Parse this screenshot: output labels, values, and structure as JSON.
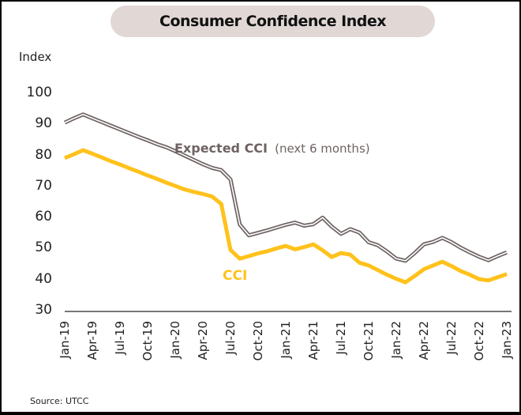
{
  "chart_data": {
    "type": "line",
    "title": "Consumer Confidence Index",
    "ylabel": "Index",
    "xlabel": "",
    "ylim": [
      30,
      100
    ],
    "yticks": [
      100,
      90,
      80,
      70,
      60,
      50,
      40,
      30
    ],
    "grid": false,
    "source": "Source:  UTCC",
    "x": [
      "Jan-19",
      "Feb-19",
      "Mar-19",
      "Apr-19",
      "May-19",
      "Jun-19",
      "Jul-19",
      "Aug-19",
      "Sep-19",
      "Oct-19",
      "Nov-19",
      "Dec-19",
      "Jan-20",
      "Feb-20",
      "Mar-20",
      "Apr-20",
      "May-20",
      "Jun-20",
      "Jul-20",
      "Aug-20",
      "Sep-20",
      "Oct-20",
      "Nov-20",
      "Dec-20",
      "Jan-21",
      "Feb-21",
      "Mar-21",
      "Apr-21",
      "May-21",
      "Jun-21",
      "Jul-21",
      "Aug-21",
      "Sep-21",
      "Oct-21",
      "Nov-21",
      "Dec-21",
      "Jan-22",
      "Feb-22",
      "Mar-22",
      "Apr-22",
      "May-22",
      "Jun-22",
      "Jul-22",
      "Aug-22",
      "Sep-22",
      "Oct-22",
      "Nov-22",
      "Dec-22",
      "Jan-23"
    ],
    "xtick_labels": [
      "Jan-19",
      "Apr-19",
      "Jul-19",
      "Oct-19",
      "Jan-20",
      "Apr-20",
      "Jul-20",
      "Oct-20",
      "Jan-21",
      "Apr-21",
      "Jul-21",
      "Oct-21",
      "Jan-22",
      "Apr-22",
      "Jul-22",
      "Oct-22",
      "Jan-23"
    ],
    "series": [
      {
        "name": "Expected CCI (next 6 months)",
        "label_bold": "Expected CCI",
        "label_light": "(next 6 months)",
        "color": "#6e6362",
        "style": "double-line",
        "values": [
          90.8,
          92.2,
          93.4,
          92.2,
          91.0,
          89.8,
          88.6,
          87.4,
          86.2,
          85.1,
          83.9,
          82.9,
          81.6,
          80.2,
          78.8,
          77.4,
          76.2,
          75.5,
          72.5,
          58.0,
          54.5,
          55.3,
          56.1,
          57.0,
          57.9,
          58.6,
          57.6,
          58.1,
          60.2,
          57.3,
          55.0,
          56.5,
          55.4,
          52.3,
          51.3,
          49.3,
          47.0,
          46.3,
          48.8,
          51.6,
          52.4,
          53.7,
          52.3,
          50.5,
          49.0,
          47.6,
          46.5,
          47.8,
          49.0
        ]
      },
      {
        "name": "CCI",
        "label_bold": "CCI",
        "color": "#ffc21c",
        "style": "solid",
        "values": [
          79.4,
          80.6,
          81.9,
          80.8,
          79.6,
          78.4,
          77.3,
          76.1,
          75.0,
          73.8,
          72.7,
          71.5,
          70.4,
          69.3,
          68.5,
          67.8,
          67.0,
          64.6,
          49.8,
          47.0,
          47.8,
          48.7,
          49.4,
          50.3,
          51.1,
          50.0,
          50.7,
          51.6,
          49.7,
          47.5,
          48.8,
          48.3,
          45.7,
          44.8,
          43.3,
          41.8,
          40.5,
          39.4,
          41.4,
          43.6,
          44.8,
          46.0,
          44.6,
          43.0,
          41.8,
          40.4,
          40.0,
          41.0,
          42.0
        ]
      }
    ]
  }
}
